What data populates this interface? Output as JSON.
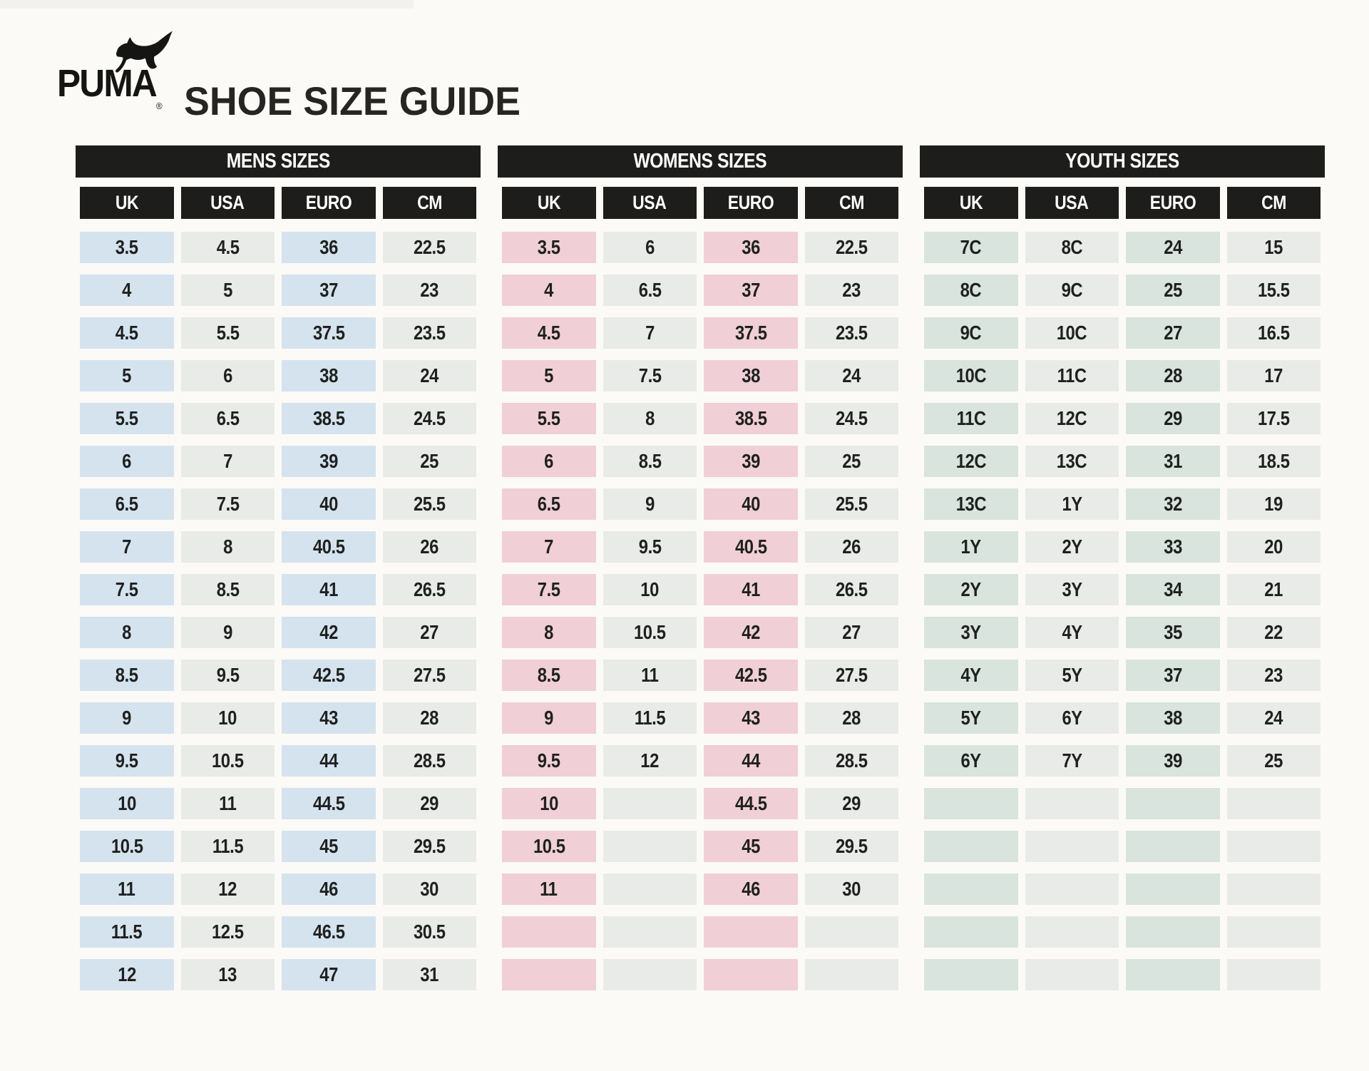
{
  "header": {
    "brand": "PUMA",
    "registered_mark": "®",
    "title": "SHOE SIZE GUIDE"
  },
  "colors": {
    "bar_black": "#1d1d1b",
    "neutral_cell": "#e9ebe8",
    "mens_accent": "#d5e3ee",
    "womens_accent": "#f1cfd7",
    "youth_accent": "#d8e4dd",
    "text": "#202221",
    "page_background": "#fbfaf7"
  },
  "tables": [
    {
      "title": "MENS SIZES",
      "accent": "#d5e3ee",
      "columns": [
        "UK",
        "USA",
        "EURO",
        "CM"
      ],
      "rows": [
        [
          "3.5",
          "4.5",
          "36",
          "22.5"
        ],
        [
          "4",
          "5",
          "37",
          "23"
        ],
        [
          "4.5",
          "5.5",
          "37.5",
          "23.5"
        ],
        [
          "5",
          "6",
          "38",
          "24"
        ],
        [
          "5.5",
          "6.5",
          "38.5",
          "24.5"
        ],
        [
          "6",
          "7",
          "39",
          "25"
        ],
        [
          "6.5",
          "7.5",
          "40",
          "25.5"
        ],
        [
          "7",
          "8",
          "40.5",
          "26"
        ],
        [
          "7.5",
          "8.5",
          "41",
          "26.5"
        ],
        [
          "8",
          "9",
          "42",
          "27"
        ],
        [
          "8.5",
          "9.5",
          "42.5",
          "27.5"
        ],
        [
          "9",
          "10",
          "43",
          "28"
        ],
        [
          "9.5",
          "10.5",
          "44",
          "28.5"
        ],
        [
          "10",
          "11",
          "44.5",
          "29"
        ],
        [
          "10.5",
          "11.5",
          "45",
          "29.5"
        ],
        [
          "11",
          "12",
          "46",
          "30"
        ],
        [
          "11.5",
          "12.5",
          "46.5",
          "30.5"
        ],
        [
          "12",
          "13",
          "47",
          "31"
        ]
      ]
    },
    {
      "title": "WOMENS SIZES",
      "accent": "#f1cfd7",
      "columns": [
        "UK",
        "USA",
        "EURO",
        "CM"
      ],
      "rows": [
        [
          "3.5",
          "6",
          "36",
          "22.5"
        ],
        [
          "4",
          "6.5",
          "37",
          "23"
        ],
        [
          "4.5",
          "7",
          "37.5",
          "23.5"
        ],
        [
          "5",
          "7.5",
          "38",
          "24"
        ],
        [
          "5.5",
          "8",
          "38.5",
          "24.5"
        ],
        [
          "6",
          "8.5",
          "39",
          "25"
        ],
        [
          "6.5",
          "9",
          "40",
          "25.5"
        ],
        [
          "7",
          "9.5",
          "40.5",
          "26"
        ],
        [
          "7.5",
          "10",
          "41",
          "26.5"
        ],
        [
          "8",
          "10.5",
          "42",
          "27"
        ],
        [
          "8.5",
          "11",
          "42.5",
          "27.5"
        ],
        [
          "9",
          "11.5",
          "43",
          "28"
        ],
        [
          "9.5",
          "12",
          "44",
          "28.5"
        ],
        [
          "10",
          "",
          "44.5",
          "29"
        ],
        [
          "10.5",
          "",
          "45",
          "29.5"
        ],
        [
          "11",
          "",
          "46",
          "30"
        ],
        [
          "",
          "",
          "",
          ""
        ],
        [
          "",
          "",
          "",
          ""
        ]
      ]
    },
    {
      "title": "YOUTH SIZES",
      "accent": "#d8e4dd",
      "columns": [
        "UK",
        "USA",
        "EURO",
        "CM"
      ],
      "rows": [
        [
          "7C",
          "8C",
          "24",
          "15"
        ],
        [
          "8C",
          "9C",
          "25",
          "15.5"
        ],
        [
          "9C",
          "10C",
          "27",
          "16.5"
        ],
        [
          "10C",
          "11C",
          "28",
          "17"
        ],
        [
          "11C",
          "12C",
          "29",
          "17.5"
        ],
        [
          "12C",
          "13C",
          "31",
          "18.5"
        ],
        [
          "13C",
          "1Y",
          "32",
          "19"
        ],
        [
          "1Y",
          "2Y",
          "33",
          "20"
        ],
        [
          "2Y",
          "3Y",
          "34",
          "21"
        ],
        [
          "3Y",
          "4Y",
          "35",
          "22"
        ],
        [
          "4Y",
          "5Y",
          "37",
          "23"
        ],
        [
          "5Y",
          "6Y",
          "38",
          "24"
        ],
        [
          "6Y",
          "7Y",
          "39",
          "25"
        ],
        [
          "",
          "",
          "",
          ""
        ],
        [
          "",
          "",
          "",
          ""
        ],
        [
          "",
          "",
          "",
          ""
        ],
        [
          "",
          "",
          "",
          ""
        ],
        [
          "",
          "",
          "",
          ""
        ]
      ]
    }
  ]
}
